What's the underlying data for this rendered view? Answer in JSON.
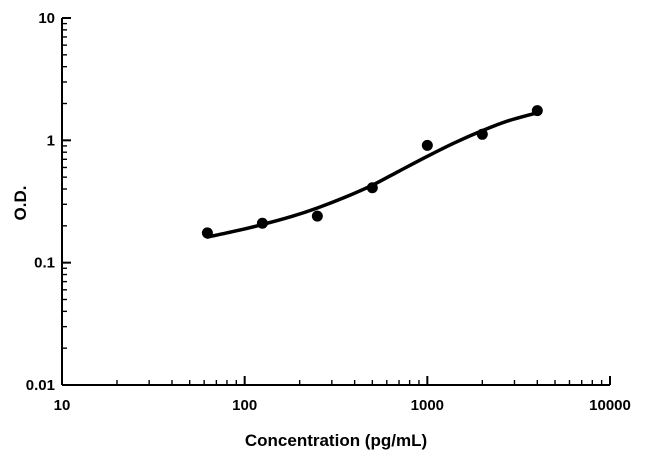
{
  "chart_data": {
    "type": "scatter",
    "title": "",
    "xlabel": "Concentration (pg/mL)",
    "ylabel": "O.D.",
    "xscale": "log",
    "yscale": "log",
    "xlim": [
      10,
      10000
    ],
    "ylim": [
      0.01,
      10
    ],
    "x_ticks": [
      10,
      100,
      1000,
      10000
    ],
    "x_tick_labels": [
      "10",
      "100",
      "1000",
      "10000"
    ],
    "y_ticks": [
      0.01,
      0.1,
      1,
      10
    ],
    "y_tick_labels": [
      "0.01",
      "0.1",
      "1",
      "10"
    ],
    "grid": false,
    "legend": "none",
    "series": [
      {
        "points": [
          {
            "x": 62.5,
            "y": 0.175
          },
          {
            "x": 125,
            "y": 0.21
          },
          {
            "x": 250,
            "y": 0.24
          },
          {
            "x": 500,
            "y": 0.41
          },
          {
            "x": 1000,
            "y": 0.91
          },
          {
            "x": 2000,
            "y": 1.12
          },
          {
            "x": 4000,
            "y": 1.75
          }
        ]
      }
    ],
    "fit_curve": [
      {
        "x": 62.5,
        "y": 0.162
      },
      {
        "x": 90,
        "y": 0.182
      },
      {
        "x": 125,
        "y": 0.205
      },
      {
        "x": 180,
        "y": 0.238
      },
      {
        "x": 250,
        "y": 0.28
      },
      {
        "x": 350,
        "y": 0.34
      },
      {
        "x": 500,
        "y": 0.43
      },
      {
        "x": 700,
        "y": 0.56
      },
      {
        "x": 1000,
        "y": 0.74
      },
      {
        "x": 1400,
        "y": 0.95
      },
      {
        "x": 2000,
        "y": 1.2
      },
      {
        "x": 2800,
        "y": 1.45
      },
      {
        "x": 4000,
        "y": 1.68
      }
    ],
    "colors": {
      "marker": "#000000",
      "line": "#000000",
      "axis": "#000000"
    }
  }
}
